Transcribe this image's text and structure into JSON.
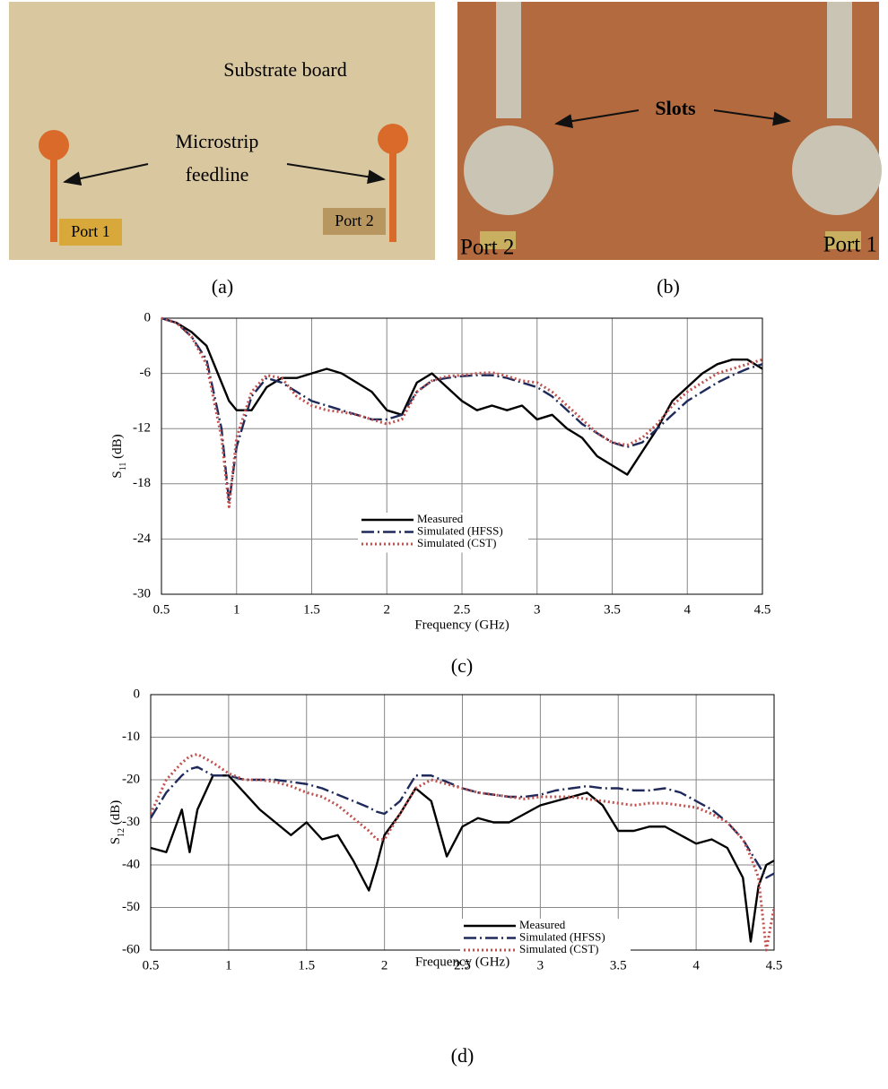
{
  "photos": {
    "a": {
      "caption": "(a)",
      "board_label": "Substrate board",
      "feed_label": [
        "Microstrip",
        "feedline"
      ],
      "port_left": "Port 1",
      "port_right": "Port 2"
    },
    "b": {
      "caption": "(b)",
      "slot_label": "Slots",
      "port_left": "Port 2",
      "port_right": "Port 1"
    }
  },
  "chart_data": [
    {
      "type": "line",
      "caption": "(c)",
      "xlabel": "Frequency (GHz)",
      "ylabel_parts": [
        "S",
        "11",
        " (dB)"
      ],
      "xlim": [
        0.5,
        4.5
      ],
      "xticks": [
        0.5,
        1,
        1.5,
        2,
        2.5,
        3,
        3.5,
        4,
        4.5
      ],
      "ylim": [
        -30,
        0
      ],
      "yticks": [
        0,
        -6,
        -12,
        -18,
        -24,
        -30
      ],
      "grid": true,
      "legend": "center",
      "x": [
        0.5,
        0.6,
        0.7,
        0.8,
        0.9,
        0.95,
        1.0,
        1.1,
        1.2,
        1.3,
        1.4,
        1.5,
        1.6,
        1.7,
        1.8,
        1.9,
        2.0,
        2.1,
        2.2,
        2.3,
        2.4,
        2.5,
        2.6,
        2.7,
        2.8,
        2.9,
        3.0,
        3.1,
        3.2,
        3.3,
        3.4,
        3.5,
        3.6,
        3.7,
        3.8,
        3.9,
        4.0,
        4.1,
        4.2,
        4.3,
        4.4,
        4.5
      ],
      "series": [
        {
          "name": "Measured",
          "color": "#000000",
          "dash": "solid",
          "values": [
            0,
            -0.5,
            -1.5,
            -3,
            -7,
            -9,
            -10,
            -10,
            -7.5,
            -6.5,
            -6.5,
            -6,
            -5.5,
            -6,
            -7,
            -8,
            -10,
            -10.5,
            -7,
            -6,
            -7.5,
            -9,
            -10,
            -9.5,
            -10,
            -9.5,
            -11,
            -10.5,
            -12,
            -13,
            -15,
            -16,
            -17,
            -14.5,
            -12,
            -9,
            -7.5,
            -6,
            -5,
            -4.5,
            -4.5,
            -5.5
          ]
        },
        {
          "name": "Simulated (HFSS)",
          "color": "#1f2a5a",
          "dash": "dashdot",
          "values": [
            0,
            -0.5,
            -2,
            -4.5,
            -12,
            -20,
            -14,
            -8.5,
            -6.5,
            -7,
            -8,
            -9,
            -9.5,
            -10,
            -10.5,
            -11,
            -11,
            -10.5,
            -8,
            -6.8,
            -6.5,
            -6.3,
            -6.2,
            -6.2,
            -6.5,
            -7,
            -7.5,
            -8.5,
            -10,
            -11.5,
            -12.5,
            -13.5,
            -14,
            -13.5,
            -12,
            -10.5,
            -9,
            -8,
            -7,
            -6.2,
            -5.5,
            -5
          ]
        },
        {
          "name": "Simulated (CST)",
          "color": "#c0504d",
          "dash": "dot",
          "values": [
            0,
            -0.5,
            -2,
            -5,
            -13,
            -20.5,
            -13,
            -8,
            -6.2,
            -6.5,
            -8.5,
            -9.5,
            -10,
            -10.2,
            -10.5,
            -11,
            -11.5,
            -11,
            -8,
            -6.8,
            -6.3,
            -6.2,
            -6,
            -5.9,
            -6.3,
            -6.8,
            -7,
            -8,
            -9.5,
            -11,
            -12.5,
            -13.5,
            -13.8,
            -13,
            -11.5,
            -9.5,
            -8,
            -7,
            -6,
            -5.5,
            -5,
            -4.5
          ]
        }
      ]
    },
    {
      "type": "line",
      "caption": "(d)",
      "xlabel": "Frequency (GHz)",
      "ylabel_parts": [
        "S",
        "12",
        " (dB)"
      ],
      "xlim": [
        0.5,
        4.5
      ],
      "xticks": [
        0.5,
        1,
        1.5,
        2,
        2.5,
        3,
        3.5,
        4,
        4.5
      ],
      "ylim": [
        -60,
        0
      ],
      "yticks": [
        0,
        -10,
        -20,
        -30,
        -40,
        -50,
        -60
      ],
      "grid": true,
      "legend": "lower right",
      "x": [
        0.5,
        0.6,
        0.7,
        0.75,
        0.8,
        0.9,
        1.0,
        1.1,
        1.2,
        1.3,
        1.4,
        1.5,
        1.6,
        1.7,
        1.8,
        1.9,
        1.95,
        2.0,
        2.1,
        2.2,
        2.3,
        2.4,
        2.5,
        2.6,
        2.7,
        2.8,
        2.9,
        3.0,
        3.1,
        3.2,
        3.3,
        3.4,
        3.5,
        3.6,
        3.7,
        3.8,
        3.9,
        4.0,
        4.1,
        4.2,
        4.3,
        4.35,
        4.4,
        4.45,
        4.5
      ],
      "series": [
        {
          "name": "Measured",
          "color": "#000000",
          "dash": "solid",
          "values": [
            -36,
            -37,
            -27,
            -37,
            -27,
            -19,
            -19,
            -23,
            -27,
            -30,
            -33,
            -30,
            -34,
            -33,
            -39,
            -46,
            -40,
            -33,
            -28,
            -22,
            -25,
            -38,
            -31,
            -29,
            -30,
            -30,
            -28,
            -26,
            -25,
            -24,
            -23,
            -26,
            -32,
            -32,
            -31,
            -31,
            -33,
            -35,
            -34,
            -36,
            -43,
            -58,
            -45,
            -40,
            -39
          ]
        },
        {
          "name": "Simulated (HFSS)",
          "color": "#1f2a5a",
          "dash": "dashdot",
          "values": [
            -29,
            -23,
            -19,
            -17.5,
            -17,
            -19,
            -19,
            -20,
            -20,
            -20,
            -20.5,
            -21,
            -22,
            -23.5,
            -25,
            -26.5,
            -27.5,
            -28,
            -25,
            -19,
            -19,
            -20.5,
            -22,
            -23,
            -23.5,
            -24,
            -24,
            -23.5,
            -22.5,
            -22,
            -21.5,
            -22,
            -22,
            -22.5,
            -22.5,
            -22,
            -23,
            -25,
            -27,
            -30,
            -34,
            -37,
            -40,
            -43,
            -42
          ]
        },
        {
          "name": "Simulated (CST)",
          "color": "#c0504d",
          "dash": "dot",
          "values": [
            -28,
            -20,
            -16,
            -14.5,
            -14,
            -16,
            -18.5,
            -20,
            -20,
            -20.5,
            -21.5,
            -23,
            -24,
            -26,
            -29,
            -32,
            -34,
            -34,
            -28,
            -22,
            -20,
            -21,
            -22,
            -23,
            -23.5,
            -24,
            -24.5,
            -24,
            -24,
            -24,
            -24.5,
            -25,
            -25.5,
            -26,
            -25.5,
            -25.5,
            -26,
            -26.5,
            -28,
            -30,
            -34,
            -38,
            -43,
            -60,
            -50
          ]
        }
      ]
    }
  ]
}
